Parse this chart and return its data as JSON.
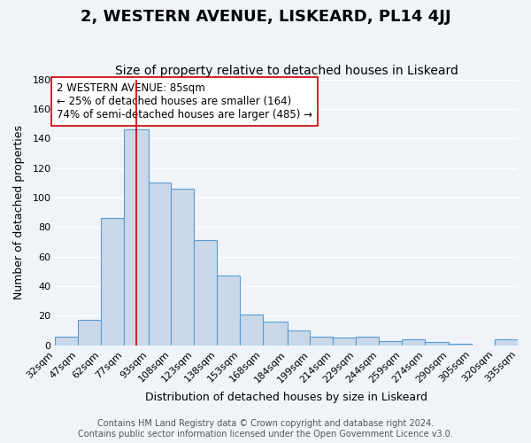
{
  "title": "2, WESTERN AVENUE, LISKEARD, PL14 4JJ",
  "subtitle": "Size of property relative to detached houses in Liskeard",
  "xlabel": "Distribution of detached houses by size in Liskeard",
  "ylabel": "Number of detached properties",
  "bin_labels": [
    "32sqm",
    "47sqm",
    "62sqm",
    "77sqm",
    "93sqm",
    "108sqm",
    "123sqm",
    "138sqm",
    "153sqm",
    "168sqm",
    "184sqm",
    "199sqm",
    "214sqm",
    "229sqm",
    "244sqm",
    "259sqm",
    "274sqm",
    "290sqm",
    "305sqm",
    "320sqm",
    "335sqm"
  ],
  "bar_heights": [
    6,
    17,
    86,
    146,
    110,
    106,
    71,
    47,
    21,
    16,
    10,
    6,
    5,
    6,
    3,
    4,
    2,
    1,
    0,
    4
  ],
  "bin_edges": [
    32,
    47,
    62,
    77,
    93,
    108,
    123,
    138,
    153,
    168,
    184,
    199,
    214,
    229,
    244,
    259,
    274,
    290,
    305,
    320,
    335
  ],
  "bar_color": "#c8d8e8",
  "bar_edge_color": "#5b9bd5",
  "property_value": 85,
  "property_line_color": "#cc0000",
  "annotation_text": "2 WESTERN AVENUE: 85sqm\n← 25% of detached houses are smaller (164)\n74% of semi-detached houses are larger (485) →",
  "annotation_box_edge_color": "#cc0000",
  "ylim": [
    0,
    180
  ],
  "yticks": [
    0,
    20,
    40,
    60,
    80,
    100,
    120,
    140,
    160,
    180
  ],
  "footer_line1": "Contains HM Land Registry data © Crown copyright and database right 2024.",
  "footer_line2": "Contains public sector information licensed under the Open Government Licence v3.0.",
  "background_color": "#f0f4f8",
  "grid_color": "#ffffff",
  "title_fontsize": 13,
  "subtitle_fontsize": 10,
  "axis_label_fontsize": 9,
  "tick_fontsize": 8,
  "annotation_fontsize": 8.5,
  "footer_fontsize": 7
}
